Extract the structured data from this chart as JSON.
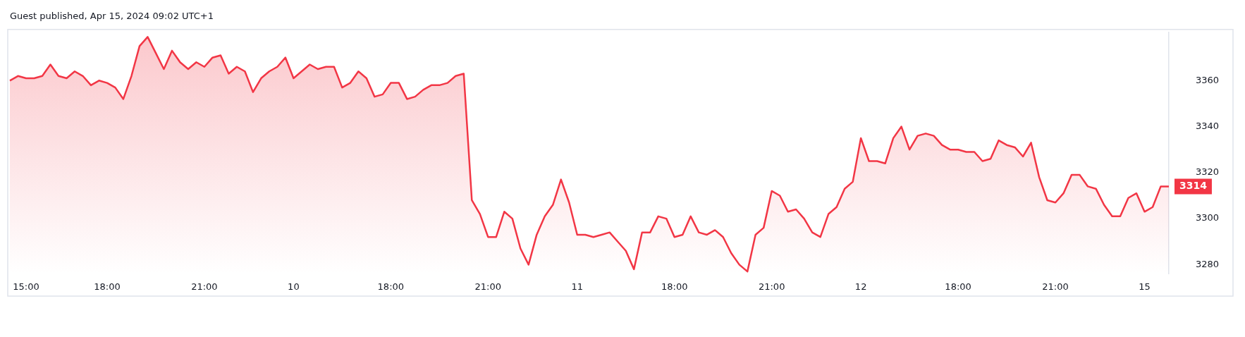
{
  "chart_data": {
    "type": "area",
    "title": "Guest published, Apr 15, 2024 09:02 UTC+1",
    "categories": [
      null,
      null,
      "15:00",
      null,
      null,
      null,
      null,
      null,
      null,
      null,
      null,
      null,
      "18:00",
      null,
      null,
      null,
      null,
      null,
      null,
      null,
      null,
      null,
      null,
      null,
      "21:00",
      null,
      null,
      null,
      null,
      null,
      null,
      null,
      null,
      null,
      null,
      "10",
      null,
      null,
      null,
      null,
      null,
      null,
      null,
      null,
      null,
      null,
      null,
      "18:00",
      null,
      null,
      null,
      null,
      null,
      null,
      null,
      null,
      null,
      null,
      null,
      "21:00",
      null,
      null,
      null,
      null,
      null,
      null,
      null,
      null,
      null,
      null,
      "11",
      null,
      null,
      null,
      null,
      null,
      null,
      null,
      null,
      null,
      null,
      null,
      "18:00",
      null,
      null,
      null,
      null,
      null,
      null,
      null,
      null,
      null,
      null,
      null,
      "21:00",
      null,
      null,
      null,
      null,
      null,
      null,
      null,
      null,
      null,
      null,
      "12",
      null,
      null,
      null,
      null,
      null,
      null,
      null,
      null,
      null,
      null,
      null,
      "18:00",
      null,
      null,
      null,
      null,
      null,
      null,
      null,
      null,
      null,
      null,
      null,
      "21:00",
      null,
      null,
      null,
      null,
      null,
      null,
      null,
      null,
      null,
      null,
      "15",
      null,
      null,
      null
    ],
    "series": [
      {
        "color": "#f23645",
        "values": [
          3360,
          3362,
          3361,
          3361,
          3362,
          3367,
          3362,
          3361,
          3364,
          3362,
          3358,
          3360,
          3359,
          3357,
          3352,
          3362,
          3375,
          3379,
          3372,
          3365,
          3373,
          3368,
          3365,
          3368,
          3366,
          3370,
          3371,
          3363,
          3366,
          3364,
          3355,
          3361,
          3364,
          3366,
          3370,
          3361,
          3364,
          3367,
          3365,
          3366,
          3366,
          3357,
          3359,
          3364,
          3361,
          3353,
          3354,
          3359,
          3359,
          3352,
          3353,
          3356,
          3358,
          3358,
          3359,
          3362,
          3363,
          3308,
          3302,
          3292,
          3292,
          3303,
          3300,
          3287,
          3280,
          3293,
          3301,
          3306,
          3317,
          3307,
          3293,
          3293,
          3292,
          3293,
          3294,
          3290,
          3286,
          3278,
          3294,
          3294,
          3301,
          3300,
          3292,
          3293,
          3301,
          3294,
          3293,
          3295,
          3292,
          3285,
          3280,
          3277,
          3293,
          3296,
          3312,
          3310,
          3303,
          3304,
          3300,
          3294,
          3292,
          3302,
          3305,
          3313,
          3316,
          3335,
          3325,
          3325,
          3324,
          3335,
          3340,
          3330,
          3336,
          3337,
          3336,
          3332,
          3330,
          3330,
          3329,
          3329,
          3325,
          3326,
          3334,
          3332,
          3331,
          3327,
          3333,
          3318,
          3308,
          3307,
          3311,
          3319,
          3319,
          3314,
          3313,
          3306,
          3301,
          3301,
          3309,
          3311,
          3303,
          3305,
          3314,
          3314
        ]
      }
    ],
    "ylim": [
      3276,
      3381
    ],
    "yticks": [
      3280,
      3300,
      3320,
      3340,
      3360
    ],
    "annotations": [
      "3314"
    ]
  }
}
